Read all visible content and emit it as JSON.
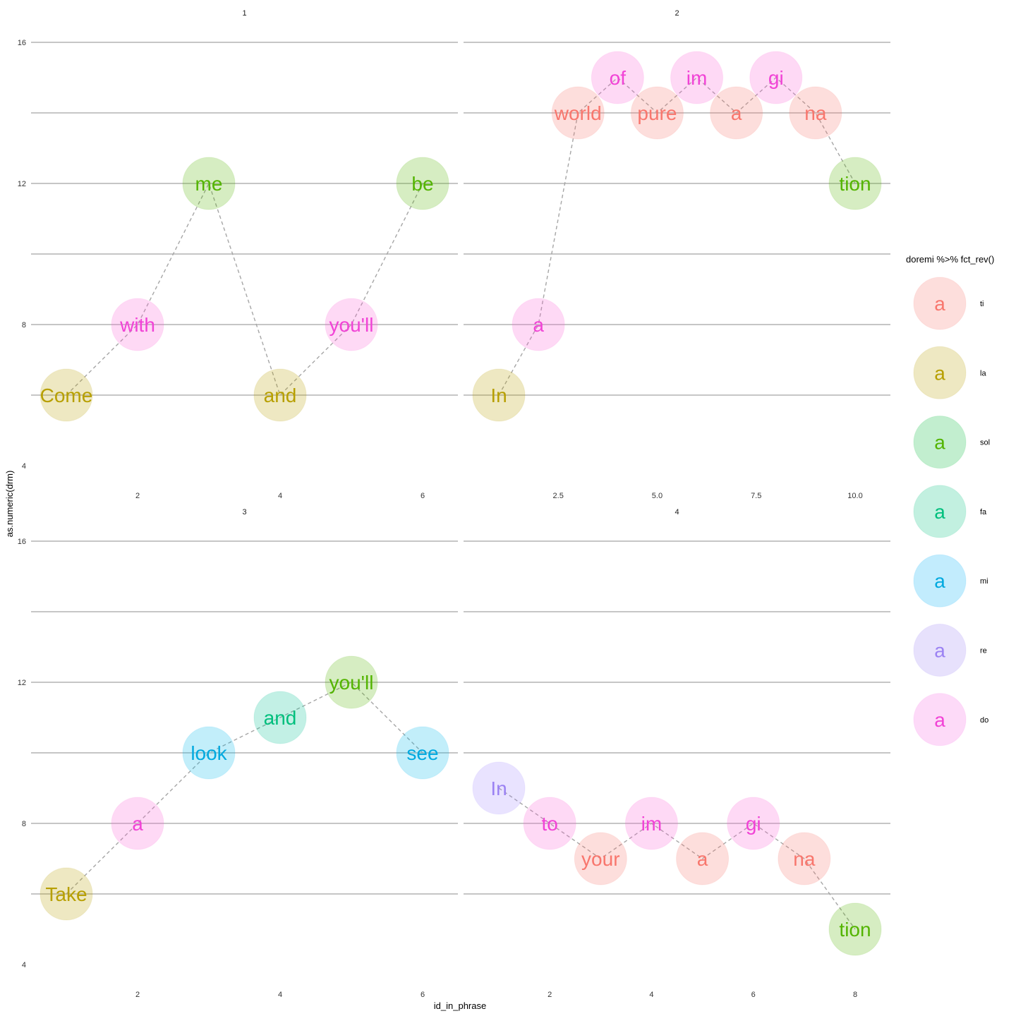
{
  "chart_data": {
    "type": "scatter",
    "xlabel": "id_in_phrase",
    "ylabel": "as.numeric(drm)",
    "legend": {
      "title": "doremi %>% fct_rev()",
      "placement": "right",
      "glyph": "a",
      "entries": [
        {
          "label": "ti",
          "color": "#F8766D"
        },
        {
          "label": "la",
          "color": "#B79F00"
        },
        {
          "label": "sol",
          "color": "#00BA38"
        },
        {
          "label": "fa",
          "color": "#00BF7D"
        },
        {
          "label": "mi",
          "color": "#00B0F6"
        },
        {
          "label": "re",
          "color": "#9B82F3"
        },
        {
          "label": "do",
          "color": "#F564E3"
        }
      ]
    },
    "colors": {
      "ti": "#F8766D",
      "la": "#B79F00",
      "sol": "#53B400",
      "fa": "#00BF7D",
      "mi": "#00A9DF",
      "re": "#9B82F3",
      "do": "#F143D6"
    },
    "fill_colors": {
      "ti": "#F8766D",
      "la": "#B79F00",
      "sol": "#53B400",
      "fa": "#00C094",
      "mi": "#00B6EB",
      "re": "#A58AFF",
      "do": "#FB61D7"
    },
    "y_ticks": [
      4,
      8,
      12,
      16
    ],
    "ylim": [
      4,
      16
    ],
    "grid": "major-y",
    "panels": [
      {
        "strip": "1",
        "xlim": [
          1,
          6
        ],
        "x_ticks": [
          {
            "v": 2,
            "label": "2"
          },
          {
            "v": 4,
            "label": "4"
          },
          {
            "v": 6,
            "label": "6"
          }
        ],
        "points": [
          {
            "x": 1,
            "y": 6,
            "word": "Come",
            "note": "la"
          },
          {
            "x": 2,
            "y": 8,
            "word": "with",
            "note": "do"
          },
          {
            "x": 3,
            "y": 12,
            "word": "me",
            "note": "sol"
          },
          {
            "x": 4,
            "y": 6,
            "word": "and",
            "note": "la"
          },
          {
            "x": 5,
            "y": 8,
            "word": "you'll",
            "note": "do"
          },
          {
            "x": 6,
            "y": 12,
            "word": "be",
            "note": "sol"
          }
        ]
      },
      {
        "strip": "2",
        "xlim": [
          1,
          10
        ],
        "x_ticks": [
          {
            "v": 2.5,
            "label": "2.5"
          },
          {
            "v": 5,
            "label": "5.0"
          },
          {
            "v": 7.5,
            "label": "7.5"
          },
          {
            "v": 10,
            "label": "10.0"
          }
        ],
        "points": [
          {
            "x": 1,
            "y": 6,
            "word": "In",
            "note": "la"
          },
          {
            "x": 2,
            "y": 8,
            "word": "a",
            "note": "do"
          },
          {
            "x": 3,
            "y": 14,
            "word": "world",
            "note": "ti"
          },
          {
            "x": 4,
            "y": 15,
            "word": "of",
            "note": "do"
          },
          {
            "x": 5,
            "y": 14,
            "word": "pure",
            "note": "ti"
          },
          {
            "x": 6,
            "y": 15,
            "word": "im",
            "note": "do"
          },
          {
            "x": 7,
            "y": 14,
            "word": "a",
            "note": "ti"
          },
          {
            "x": 8,
            "y": 15,
            "word": "gi",
            "note": "do"
          },
          {
            "x": 9,
            "y": 14,
            "word": "na",
            "note": "ti"
          },
          {
            "x": 10,
            "y": 12,
            "word": "tion",
            "note": "sol"
          }
        ]
      },
      {
        "strip": "3",
        "xlim": [
          1,
          6
        ],
        "x_ticks": [
          {
            "v": 2,
            "label": "2"
          },
          {
            "v": 4,
            "label": "4"
          },
          {
            "v": 6,
            "label": "6"
          }
        ],
        "points": [
          {
            "x": 1,
            "y": 6,
            "word": "Take",
            "note": "la"
          },
          {
            "x": 2,
            "y": 8,
            "word": "a",
            "note": "do"
          },
          {
            "x": 3,
            "y": 10,
            "word": "look",
            "note": "mi"
          },
          {
            "x": 4,
            "y": 11,
            "word": "and",
            "note": "fa"
          },
          {
            "x": 5,
            "y": 12,
            "word": "you'll",
            "note": "sol"
          },
          {
            "x": 6,
            "y": 10,
            "word": "see",
            "note": "mi"
          }
        ]
      },
      {
        "strip": "4",
        "xlim": [
          1,
          8
        ],
        "x_ticks": [
          {
            "v": 2,
            "label": "2"
          },
          {
            "v": 4,
            "label": "4"
          },
          {
            "v": 6,
            "label": "6"
          },
          {
            "v": 8,
            "label": "8"
          }
        ],
        "points": [
          {
            "x": 1,
            "y": 9,
            "word": "In",
            "note": "re"
          },
          {
            "x": 2,
            "y": 8,
            "word": "to",
            "note": "do"
          },
          {
            "x": 3,
            "y": 7,
            "word": "your",
            "note": "ti"
          },
          {
            "x": 4,
            "y": 8,
            "word": "im",
            "note": "do"
          },
          {
            "x": 5,
            "y": 7,
            "word": "a",
            "note": "ti"
          },
          {
            "x": 6,
            "y": 8,
            "word": "gi",
            "note": "do"
          },
          {
            "x": 7,
            "y": 7,
            "word": "na",
            "note": "ti"
          },
          {
            "x": 8,
            "y": 5,
            "word": "tion",
            "note": "sol"
          }
        ]
      }
    ]
  }
}
